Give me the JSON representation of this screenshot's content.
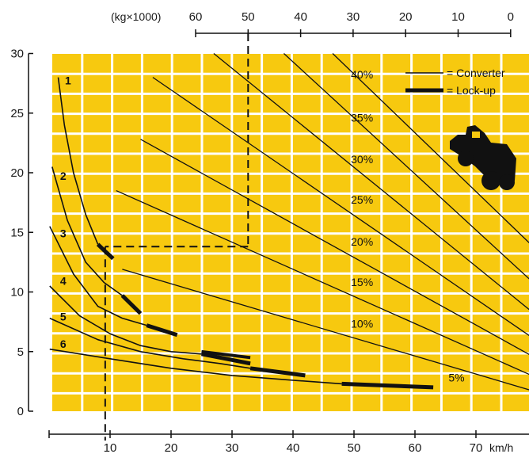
{
  "chart_data": {
    "type": "line",
    "title": "",
    "xlabel": "km/h",
    "ylabel": "",
    "top_axis_label": "(kg×1000)",
    "xlim": [
      0,
      80
    ],
    "ylim": [
      0,
      30
    ],
    "x_ticks": [
      10,
      20,
      30,
      40,
      50,
      60,
      70
    ],
    "y_ticks": [
      0,
      5,
      10,
      15,
      20,
      25,
      30
    ],
    "top_ticks": [
      60,
      50,
      40,
      30,
      20,
      10,
      0
    ],
    "grid": true,
    "legend_position": "top-right",
    "legend": [
      {
        "label": "= Converter",
        "style": "converter"
      },
      {
        "label": "= Lock-up",
        "style": "lockup"
      }
    ],
    "colors": {
      "background": "#f7c90f",
      "grid": "#ffffff",
      "ink": "#111111"
    },
    "gear_curves": [
      {
        "name": "1",
        "label_at": [
          2.6,
          27.4
        ],
        "converter": [
          [
            1.5,
            28
          ],
          [
            2.5,
            24
          ],
          [
            4,
            20
          ],
          [
            6,
            16.5
          ],
          [
            8,
            14
          ]
        ],
        "lockup": [
          [
            8,
            14
          ],
          [
            9,
            13.5
          ],
          [
            10.5,
            12.8
          ]
        ]
      },
      {
        "name": "2",
        "label_at": [
          1.8,
          19.4
        ],
        "converter": [
          [
            0.5,
            20.5
          ],
          [
            3,
            16
          ],
          [
            6,
            12.5
          ],
          [
            9,
            10.8
          ],
          [
            12,
            9.7
          ]
        ],
        "lockup": [
          [
            12,
            9.7
          ],
          [
            15,
            8.2
          ]
        ]
      },
      {
        "name": "3",
        "label_at": [
          1.8,
          14.6
        ],
        "converter": [
          [
            0.1,
            15.5
          ],
          [
            4,
            11.5
          ],
          [
            8,
            8.8
          ],
          [
            12,
            7.8
          ],
          [
            16,
            7.2
          ]
        ],
        "lockup": [
          [
            16,
            7.2
          ],
          [
            21,
            6.4
          ]
        ]
      },
      {
        "name": "4",
        "label_at": [
          1.8,
          10.6
        ],
        "converter": [
          [
            0.1,
            10.5
          ],
          [
            5,
            8
          ],
          [
            10,
            6.5
          ],
          [
            15,
            5.5
          ],
          [
            20,
            5
          ],
          [
            25,
            4.8
          ]
        ],
        "lockup": [
          [
            25,
            4.8
          ],
          [
            33,
            4.0
          ]
        ]
      },
      {
        "name": "5",
        "label_at": [
          1.8,
          7.6
        ],
        "converter": [
          [
            0.1,
            7.8
          ],
          [
            8,
            6
          ],
          [
            15,
            5
          ],
          [
            22,
            4.4
          ],
          [
            28,
            4
          ],
          [
            33,
            3.6
          ]
        ],
        "lockup": [
          [
            33,
            3.6
          ],
          [
            42,
            3.0
          ]
        ]
      },
      {
        "name": "6",
        "label_at": [
          1.8,
          5.3
        ],
        "converter": [
          [
            0.1,
            5.2
          ],
          [
            10,
            4.4
          ],
          [
            20,
            3.6
          ],
          [
            30,
            3
          ],
          [
            40,
            2.6
          ],
          [
            48,
            2.3
          ]
        ],
        "lockup": [
          [
            48,
            2.3
          ],
          [
            63,
            2.0
          ]
        ]
      }
    ],
    "lockup_extra": [
      {
        "gear": "4",
        "points": [
          [
            25,
            5.0
          ],
          [
            33,
            4.5
          ]
        ]
      }
    ],
    "grade_lines": [
      {
        "label": "40%",
        "label_at": [
          49.5,
          27.9
        ],
        "start": [
          46.5,
          30
        ],
        "end": [
          80,
          13.5
        ]
      },
      {
        "label": "35%",
        "label_at": [
          49.5,
          24.3
        ],
        "start": [
          38.5,
          30
        ],
        "end": [
          80,
          10.5
        ]
      },
      {
        "label": "30%",
        "label_at": [
          49.5,
          20.8
        ],
        "start": [
          27,
          30
        ],
        "end": [
          80,
          8
        ]
      },
      {
        "label": "25%",
        "label_at": [
          49.5,
          17.4
        ],
        "start": [
          17,
          28
        ],
        "end": [
          80,
          5.9
        ]
      },
      {
        "label": "20%",
        "label_at": [
          49.5,
          13.9
        ],
        "start": [
          15,
          22.8
        ],
        "end": [
          80,
          4.4
        ]
      },
      {
        "label": "15%",
        "label_at": [
          49.5,
          10.5
        ],
        "start": [
          11,
          18.5
        ],
        "end": [
          80,
          2.8
        ]
      },
      {
        "label": "10%",
        "label_at": [
          49.5,
          7.0
        ],
        "start": [
          12,
          11.9
        ],
        "end": [
          80,
          1.6
        ]
      },
      {
        "label": "5%",
        "label_at": [
          65.5,
          2.5
        ],
        "start": [],
        "end": []
      }
    ],
    "example_path": {
      "weight_kgx1000": 50,
      "speed": 9.2,
      "value": 13.8
    }
  }
}
